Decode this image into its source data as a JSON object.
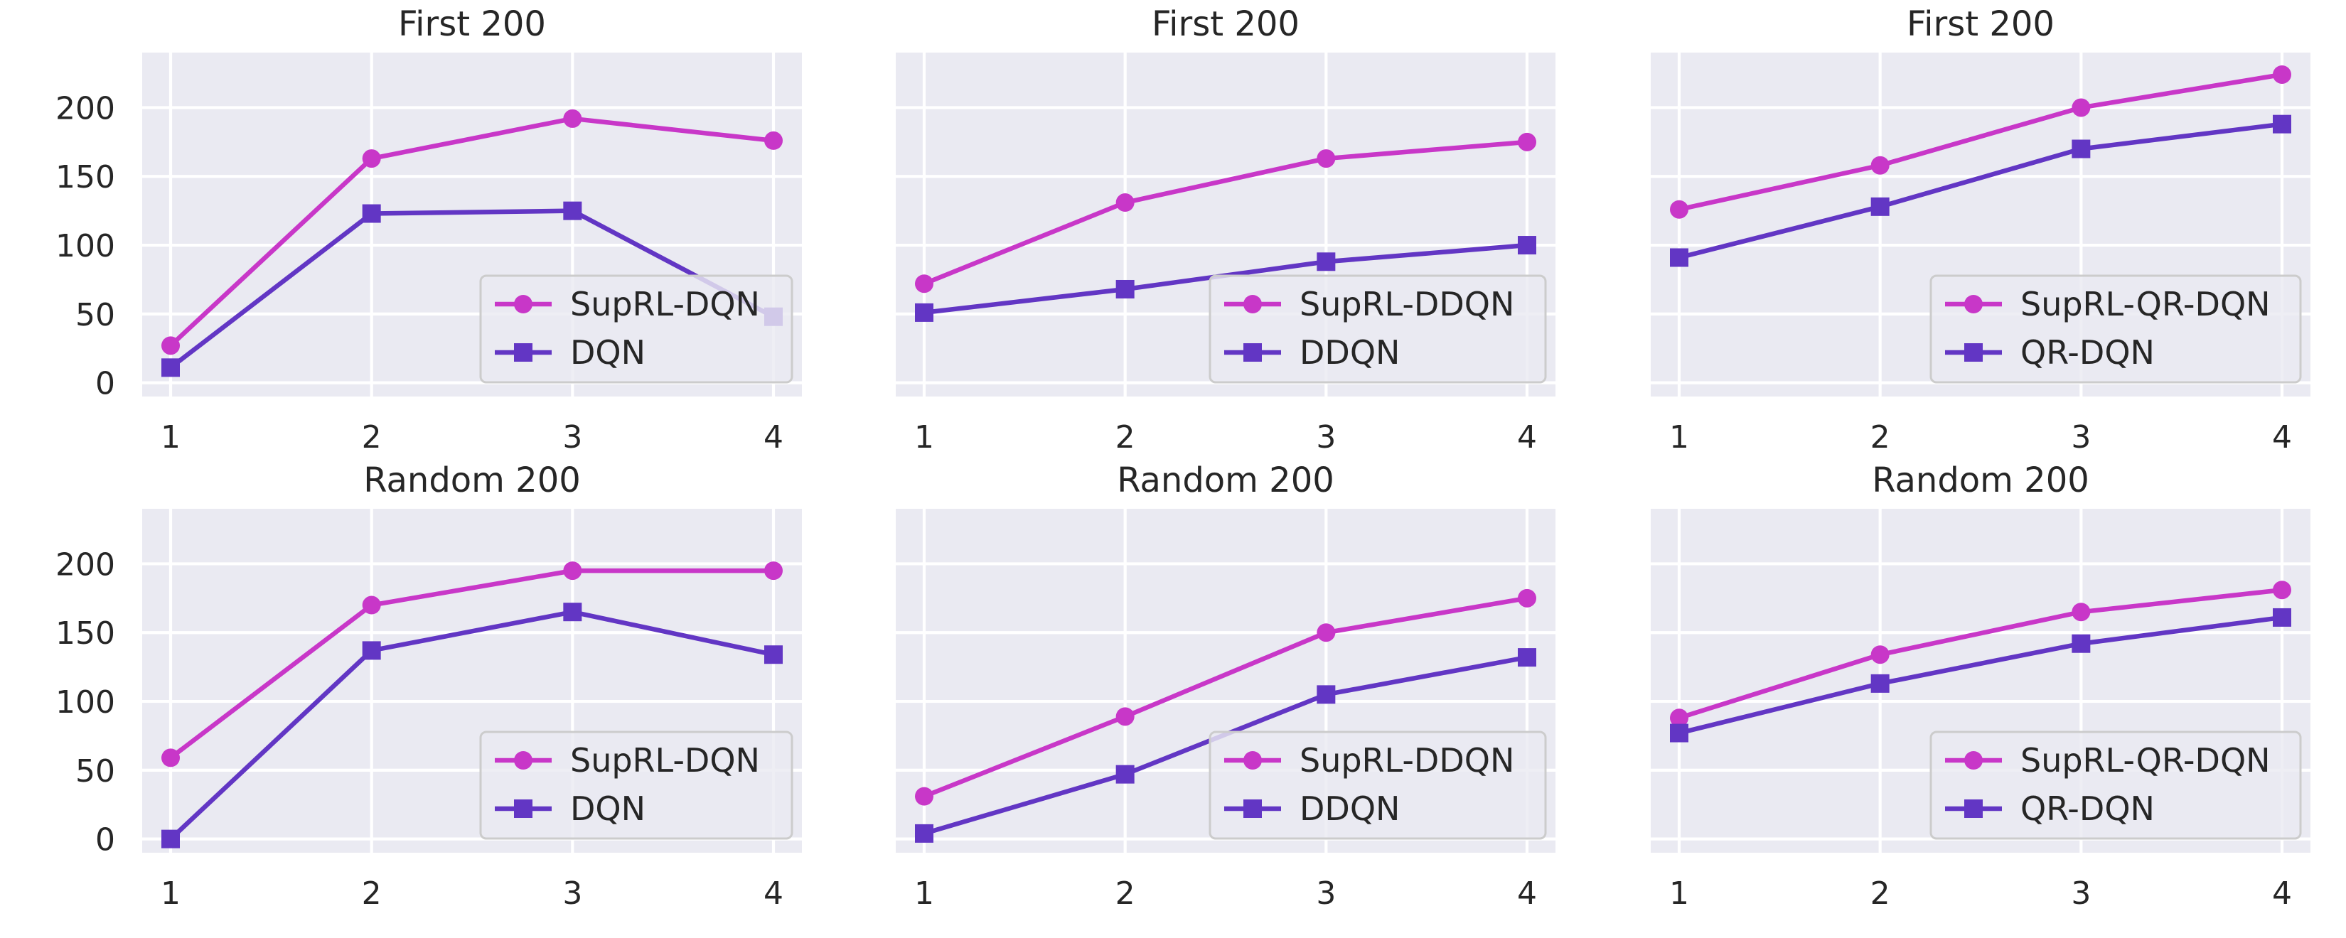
{
  "colors": {
    "suprl": "#c837c8",
    "base": "#6236c4"
  },
  "chart_data": [
    {
      "type": "line",
      "title": "First 200",
      "x": [
        1,
        2,
        3,
        4
      ],
      "ylim": [
        -10,
        240
      ],
      "yticks": [
        0,
        50,
        100,
        150,
        200
      ],
      "grid": true,
      "legend": "lower-right",
      "series": [
        {
          "name": "SupRL-DQN",
          "marker": "circle",
          "values": [
            27,
            163,
            192,
            176
          ]
        },
        {
          "name": "DQN",
          "marker": "square",
          "values": [
            11,
            123,
            125,
            48
          ]
        }
      ]
    },
    {
      "type": "line",
      "title": "First 200",
      "x": [
        1,
        2,
        3,
        4
      ],
      "ylim": [
        -10,
        240
      ],
      "yticks": [
        0,
        50,
        100,
        150,
        200
      ],
      "grid": true,
      "legend": "lower-right",
      "series": [
        {
          "name": "SupRL-DDQN",
          "marker": "circle",
          "values": [
            72,
            131,
            163,
            175
          ]
        },
        {
          "name": "DDQN",
          "marker": "square",
          "values": [
            51,
            68,
            88,
            100
          ]
        }
      ]
    },
    {
      "type": "line",
      "title": "First 200",
      "x": [
        1,
        2,
        3,
        4
      ],
      "ylim": [
        -10,
        240
      ],
      "yticks": [
        0,
        50,
        100,
        150,
        200
      ],
      "grid": true,
      "legend": "lower-right",
      "series": [
        {
          "name": "SupRL-QR-DQN",
          "marker": "circle",
          "values": [
            126,
            158,
            200,
            224
          ]
        },
        {
          "name": "QR-DQN",
          "marker": "square",
          "values": [
            91,
            128,
            170,
            188
          ]
        }
      ]
    },
    {
      "type": "line",
      "title": "Random 200",
      "x": [
        1,
        2,
        3,
        4
      ],
      "ylim": [
        -10,
        240
      ],
      "yticks": [
        0,
        50,
        100,
        150,
        200
      ],
      "grid": true,
      "legend": "lower-right",
      "series": [
        {
          "name": "SupRL-DQN",
          "marker": "circle",
          "values": [
            59,
            170,
            195,
            195
          ]
        },
        {
          "name": "DQN",
          "marker": "square",
          "values": [
            0,
            137,
            165,
            134
          ]
        }
      ]
    },
    {
      "type": "line",
      "title": "Random 200",
      "x": [
        1,
        2,
        3,
        4
      ],
      "ylim": [
        -10,
        240
      ],
      "yticks": [
        0,
        50,
        100,
        150,
        200
      ],
      "grid": true,
      "legend": "lower-right",
      "series": [
        {
          "name": "SupRL-DDQN",
          "marker": "circle",
          "values": [
            31,
            89,
            150,
            175
          ]
        },
        {
          "name": "DDQN",
          "marker": "square",
          "values": [
            4,
            47,
            105,
            132
          ]
        }
      ]
    },
    {
      "type": "line",
      "title": "Random 200",
      "x": [
        1,
        2,
        3,
        4
      ],
      "ylim": [
        -10,
        240
      ],
      "yticks": [
        0,
        50,
        100,
        150,
        200
      ],
      "grid": true,
      "legend": "lower-right",
      "series": [
        {
          "name": "SupRL-QR-DQN",
          "marker": "circle",
          "values": [
            88,
            134,
            165,
            181
          ]
        },
        {
          "name": "QR-DQN",
          "marker": "square",
          "values": [
            77,
            113,
            142,
            161
          ]
        }
      ]
    }
  ]
}
